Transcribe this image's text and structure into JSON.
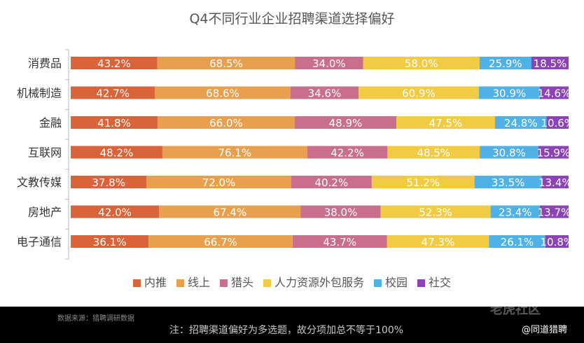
{
  "chart_data": {
    "type": "bar",
    "orientation": "horizontal",
    "stacked": true,
    "title": "Q4不同行业企业招聘渠道选择偏好",
    "categories": [
      "消费品",
      "机械制造",
      "金融",
      "互联网",
      "文教传媒",
      "房地产",
      "电子通信"
    ],
    "series": [
      {
        "name": "内推",
        "color": "#d9643a",
        "values": [
          43.2,
          42.7,
          41.8,
          48.2,
          37.8,
          42.0,
          36.1
        ]
      },
      {
        "name": "线上",
        "color": "#e8a04e",
        "values": [
          68.5,
          68.6,
          66.0,
          76.1,
          72.0,
          67.4,
          66.7
        ]
      },
      {
        "name": "猎头",
        "color": "#c96f8c",
        "values": [
          34.0,
          34.6,
          48.9,
          42.2,
          40.2,
          38.0,
          43.7
        ]
      },
      {
        "name": "人力资源外包服务",
        "color": "#f2cb44",
        "values": [
          58.0,
          60.9,
          47.5,
          48.5,
          51.2,
          52.3,
          47.3
        ]
      },
      {
        "name": "校园",
        "color": "#4fb1e6",
        "values": [
          25.9,
          30.9,
          24.8,
          30.8,
          33.5,
          23.4,
          26.1
        ]
      },
      {
        "name": "社交",
        "color": "#8b43b5",
        "values": [
          18.5,
          14.6,
          10.6,
          15.9,
          13.4,
          13.7,
          10.8
        ]
      }
    ],
    "value_format": "percent_1dp",
    "legend_position": "bottom",
    "grid": false
  },
  "footer": {
    "source": "数据来源：猎聘调研数据",
    "note": "注：招聘渠道偏好为多选题，故分项加总不等于100%",
    "watermark": "老虎社区",
    "handle": "@同道猎聘"
  }
}
